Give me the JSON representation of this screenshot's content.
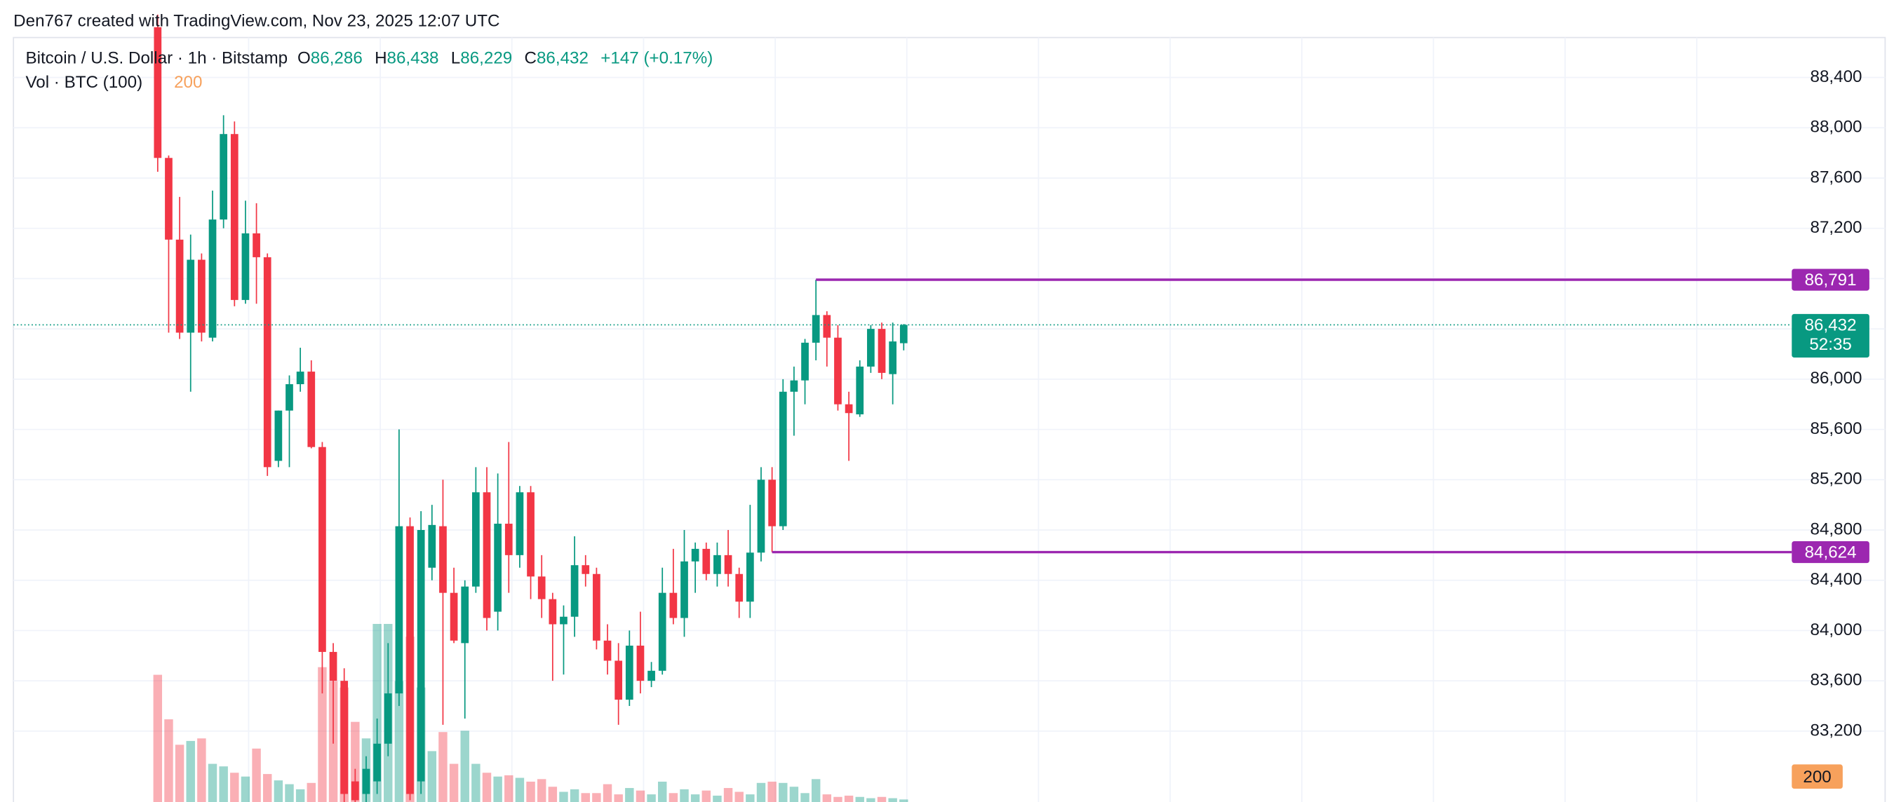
{
  "header": {
    "credit": "Den767 created with TradingView.com, Nov 23, 2025 12:07 UTC"
  },
  "chart_data": {
    "type": "candlestick",
    "title": "Bitcoin / U.S. Dollar · 1h · Bitstamp",
    "ohlc_legend": [
      {
        "key": "O",
        "label": "86,286"
      },
      {
        "key": "H",
        "label": "86,438"
      },
      {
        "key": "L",
        "label": "86,229"
      },
      {
        "key": "C",
        "label": "86,432"
      }
    ],
    "change": {
      "value": 147,
      "label": "+147 (+0.17%)"
    },
    "volume_title": "Vol · BTC (100)",
    "volume_ma": 200,
    "volume_ma_color": "#f7a15c",
    "up_color": "#089981",
    "down_color": "#f23645",
    "ylim": [
      82636,
      88708
    ],
    "yticks": [
      {
        "value": 83200,
        "label": "83,200"
      },
      {
        "value": 83600,
        "label": "83,600"
      },
      {
        "value": 84000,
        "label": "84,000"
      },
      {
        "value": 84400,
        "label": "84,400"
      },
      {
        "value": 84800,
        "label": "84,800"
      },
      {
        "value": 85200,
        "label": "85,200"
      },
      {
        "value": 85600,
        "label": "85,600"
      },
      {
        "value": 86000,
        "label": "86,000"
      },
      {
        "value": 86400,
        "label": "86,400"
      },
      {
        "value": 86800,
        "label": "86,800"
      },
      {
        "value": 87200,
        "label": "87,200"
      },
      {
        "value": 87600,
        "label": "87,600"
      },
      {
        "value": 88000,
        "label": "88,000"
      },
      {
        "value": 88400,
        "label": "88,400"
      }
    ],
    "grid": true,
    "open": [
      88800,
      87760,
      87110,
      86370,
      86950,
      86330,
      87270,
      87950,
      86630,
      87160,
      86970,
      85350,
      85750,
      85960,
      86060,
      85460,
      83830,
      83600,
      82800,
      82700,
      82800,
      83100,
      83500,
      84830,
      82800,
      84500,
      84830,
      84300,
      83900,
      84350,
      85100,
      84150,
      84850,
      84600,
      85100,
      84430,
      84250,
      84050,
      84110,
      84520,
      84450,
      83920,
      83760,
      83450,
      83880,
      83600,
      83680,
      84300,
      84100,
      84550,
      84650,
      84450,
      84600,
      84450,
      84230,
      84620,
      85200,
      84830,
      85900,
      85990,
      86290,
      86510,
      86330,
      85800,
      85720,
      86100,
      86400,
      86040,
      86286
    ],
    "high": [
      88900,
      87780,
      87450,
      87150,
      87000,
      87500,
      88100,
      88050,
      87420,
      87400,
      87000,
      85750,
      86030,
      86250,
      86150,
      85500,
      83900,
      83700,
      82900,
      83000,
      83300,
      83900,
      85600,
      84900,
      84950,
      85000,
      85200,
      84500,
      84400,
      85300,
      85300,
      85250,
      85500,
      85150,
      85150,
      84600,
      84300,
      84200,
      84750,
      84600,
      84500,
      84050,
      83900,
      84000,
      84150,
      83750,
      84500,
      84650,
      84800,
      84700,
      84700,
      84700,
      84800,
      84500,
      85000,
      85300,
      85300,
      86000,
      86100,
      86320,
      86791,
      86540,
      86430,
      85900,
      86150,
      86430,
      86450,
      86450,
      86438
    ],
    "low": [
      87650,
      86370,
      86320,
      85900,
      86300,
      86300,
      87200,
      86580,
      86600,
      86600,
      85230,
      85300,
      85300,
      85900,
      85450,
      83500,
      83100,
      82600,
      82600,
      82600,
      82700,
      83000,
      83400,
      82650,
      82700,
      84400,
      83250,
      83900,
      83300,
      84300,
      84000,
      84000,
      84300,
      84500,
      84250,
      84100,
      83600,
      83650,
      83950,
      84350,
      83850,
      83650,
      83250,
      83400,
      83500,
      83550,
      83650,
      84050,
      83950,
      84300,
      84400,
      84350,
      84350,
      84100,
      84100,
      84550,
      84624,
      84800,
      85550,
      85800,
      86150,
      86100,
      85750,
      85350,
      85700,
      86050,
      86000,
      85800,
      86229
    ],
    "close": [
      87760,
      87110,
      86370,
      86950,
      86370,
      87270,
      87950,
      86630,
      87160,
      86970,
      85300,
      85750,
      85960,
      86060,
      85460,
      83830,
      83600,
      82700,
      82650,
      82900,
      83100,
      83500,
      84830,
      82700,
      84800,
      84840,
      84300,
      83920,
      84350,
      85100,
      84100,
      84850,
      84600,
      85100,
      84430,
      84250,
      84050,
      84110,
      84520,
      84450,
      83920,
      83760,
      83450,
      83880,
      83600,
      83680,
      84300,
      84100,
      84550,
      84650,
      84450,
      84600,
      84450,
      84230,
      84620,
      85200,
      84830,
      85900,
      85990,
      86290,
      86510,
      86330,
      85800,
      85730,
      86100,
      86400,
      86050,
      86300,
      86432
    ],
    "volume": [
      1000,
      650,
      450,
      480,
      500,
      300,
      280,
      230,
      200,
      420,
      220,
      170,
      140,
      100,
      150,
      1060,
      950,
      900,
      630,
      500,
      1400,
      1400,
      950,
      1300,
      900,
      400,
      550,
      300,
      560,
      300,
      230,
      200,
      210,
      190,
      160,
      180,
      120,
      80,
      100,
      70,
      70,
      140,
      60,
      110,
      90,
      60,
      160,
      70,
      100,
      60,
      90,
      50,
      110,
      80,
      60,
      150,
      160,
      150,
      120,
      70,
      180,
      60,
      40,
      50,
      40,
      30,
      40,
      30,
      20
    ],
    "vol_ylim": [
      0,
      6000
    ],
    "levels": [
      {
        "value": 86791,
        "label": "86,791",
        "color": "#9c27b0"
      },
      {
        "value": 84624,
        "label": "84,624",
        "color": "#9c27b0"
      }
    ],
    "last_price": {
      "value": 86432,
      "label": "86,432",
      "countdown": "52:35",
      "color": "#089981"
    }
  }
}
